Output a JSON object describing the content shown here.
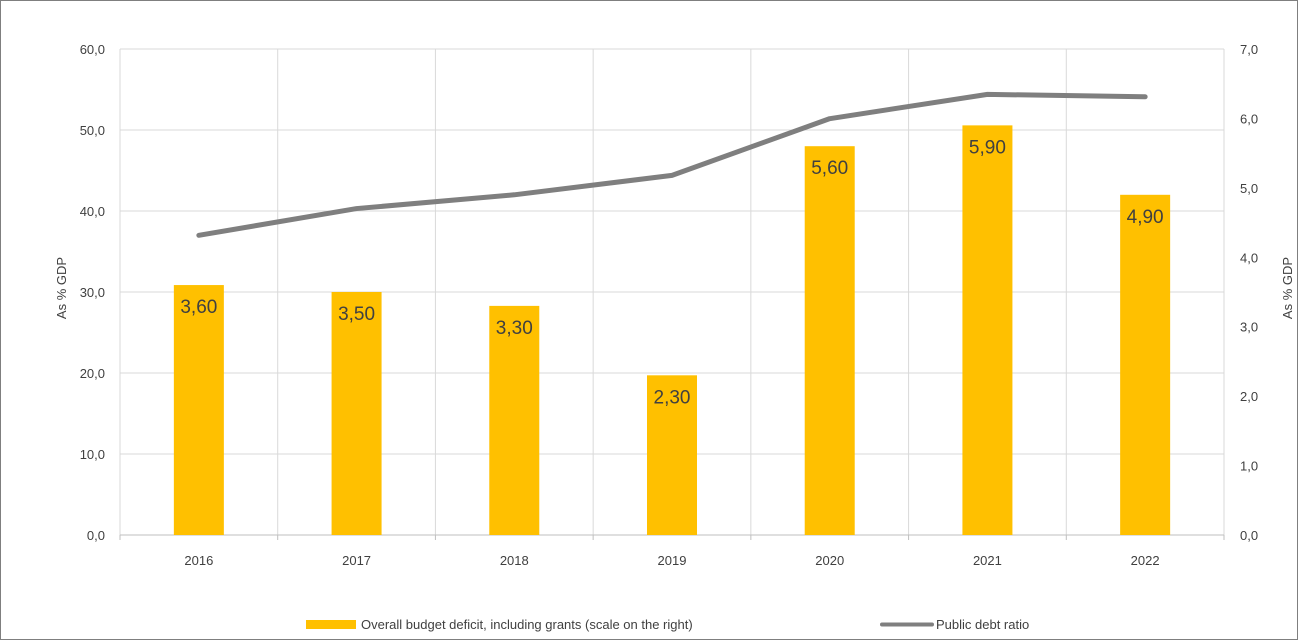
{
  "chart_data": {
    "type": "bar",
    "categories": [
      "2016",
      "2017",
      "2018",
      "2019",
      "2020",
      "2021",
      "2022"
    ],
    "series": [
      {
        "name": "Overall budget deficit, including grants (scale on the right)",
        "kind": "bar",
        "axis": "right",
        "color": "#FFC000",
        "values": [
          3.6,
          3.5,
          3.3,
          2.3,
          5.6,
          5.9,
          4.9
        ],
        "labels": [
          "3,60",
          "3,50",
          "3,30",
          "2,30",
          "5,60",
          "5,90",
          "4,90"
        ]
      },
      {
        "name": "Public debt ratio",
        "kind": "line",
        "axis": "left",
        "color": "#7F7F7F",
        "values": [
          37.0,
          40.3,
          42.0,
          44.4,
          51.4,
          54.4,
          54.1
        ]
      }
    ],
    "y_left": {
      "label": "As % GDP",
      "ylim": [
        0,
        60
      ],
      "ticks": [
        "0,0",
        "10,0",
        "20,0",
        "30,0",
        "40,0",
        "50,0",
        "60,0"
      ]
    },
    "y_right": {
      "label": "As % GDP",
      "ylim": [
        0,
        7
      ],
      "ticks": [
        "0,0",
        "1,0",
        "2,0",
        "3,0",
        "4,0",
        "5,0",
        "6,0",
        "7,0"
      ]
    },
    "grid": true,
    "legend_position": "bottom"
  }
}
